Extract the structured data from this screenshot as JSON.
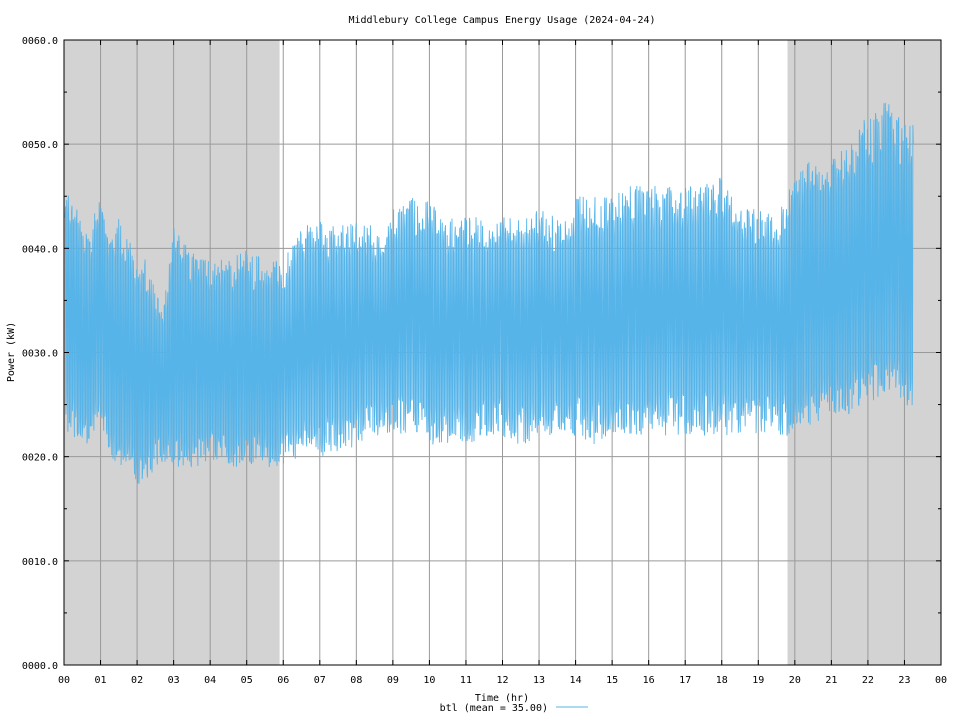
{
  "chart_data": {
    "type": "line",
    "title": "Middlebury College Campus Energy Usage (2024-04-24)",
    "xlabel": "Time (hr)",
    "ylabel": "Power (kW)",
    "xlim": [
      0,
      24
    ],
    "ylim": [
      0,
      60
    ],
    "grid": true,
    "x_ticks": [
      "00",
      "01",
      "02",
      "03",
      "04",
      "05",
      "06",
      "07",
      "08",
      "09",
      "10",
      "11",
      "12",
      "13",
      "14",
      "15",
      "16",
      "17",
      "18",
      "19",
      "20",
      "21",
      "22",
      "23",
      "00"
    ],
    "y_ticks": [
      "0000.0",
      "0010.0",
      "0020.0",
      "0030.0",
      "0040.0",
      "0050.0",
      "0060.0"
    ],
    "y_tick_values": [
      0,
      10,
      20,
      30,
      40,
      50,
      60
    ],
    "shaded_periods_hr": [
      [
        0,
        5.9
      ],
      [
        19.8,
        24
      ]
    ],
    "shade_color": "#d3d3d3",
    "legend": {
      "position": "bottom-center",
      "label": "btl (mean = 35.00)"
    },
    "series": [
      {
        "name": "btl",
        "color": "#56b4e9",
        "envelope_hr": [
          0,
          0.25,
          0.5,
          0.75,
          1,
          1.25,
          1.5,
          1.75,
          2,
          2.25,
          2.5,
          2.75,
          3,
          3.5,
          4,
          4.5,
          5,
          5.5,
          6,
          6.5,
          7,
          7.5,
          8,
          8.5,
          9,
          9.5,
          10,
          10.5,
          11,
          11.5,
          12,
          12.5,
          13,
          13.5,
          14,
          14.5,
          15,
          15.5,
          16,
          16.5,
          17,
          17.5,
          18,
          18.5,
          19,
          19.5,
          20,
          20.5,
          21,
          21.5,
          22,
          22.25,
          22.5,
          22.75,
          23,
          23.25
        ],
        "envelope_high_kw": [
          46,
          45,
          42,
          42,
          46,
          41,
          43,
          42,
          39,
          39,
          36,
          35,
          42,
          40,
          39,
          39,
          40,
          39,
          39,
          42,
          43,
          42,
          43,
          42,
          44,
          45,
          45,
          43,
          43,
          43,
          43,
          43,
          44,
          43,
          45,
          45,
          45,
          46,
          46,
          46,
          46,
          46,
          47,
          45,
          44,
          43,
          47,
          49,
          49,
          50,
          53,
          53,
          55,
          53,
          52,
          53
        ],
        "envelope_low_kw": [
          22,
          22,
          20,
          21,
          23,
          20,
          19,
          19,
          17,
          17,
          19,
          19,
          19,
          19,
          19,
          19,
          19,
          19,
          19,
          20,
          20,
          20,
          21,
          22,
          22,
          22,
          21,
          21,
          21,
          22,
          22,
          21,
          22,
          22,
          22,
          21,
          22,
          22,
          22,
          22,
          22,
          22,
          22,
          22,
          22,
          22,
          22,
          23,
          24,
          24,
          25,
          25,
          26,
          25,
          24,
          24
        ],
        "mean_kw": 35.0
      }
    ]
  }
}
